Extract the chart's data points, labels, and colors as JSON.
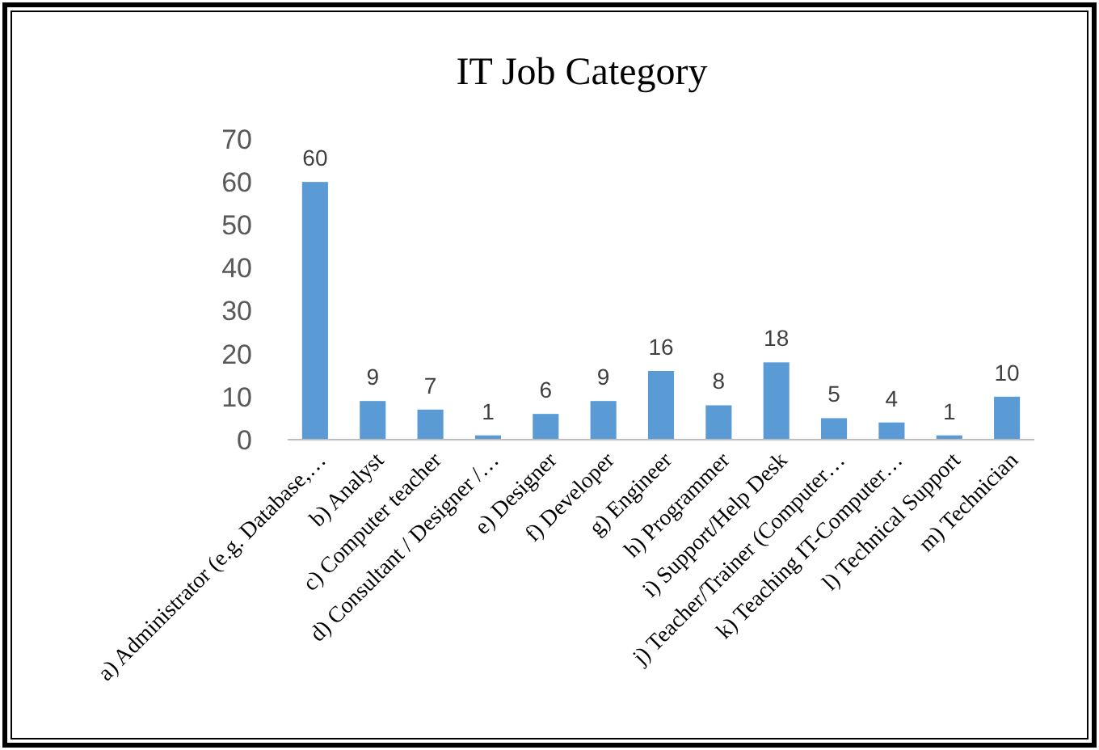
{
  "chart_data": {
    "type": "bar",
    "title": "IT  Job Category",
    "categories": [
      "a) Administrator (e.g. Database,…",
      "b) Analyst",
      "c) Computer teacher",
      "d) Consultant / Designer /…",
      "e) Designer",
      "f) Developer",
      "g) Engineer",
      "h) Programmer",
      "i)  Support/Help Desk",
      "j) Teacher/Trainer (Computer…",
      "k) Teaching IT-Computer…",
      "l)  Technical Support",
      "m)       Technician"
    ],
    "values": [
      60,
      9,
      7,
      1,
      6,
      9,
      16,
      8,
      18,
      5,
      4,
      1,
      10
    ],
    "color": "#5b9bd5",
    "ylim": [
      0,
      70
    ],
    "yticks": [
      0,
      10,
      20,
      30,
      40,
      50,
      60,
      70
    ],
    "data_labels": true
  }
}
